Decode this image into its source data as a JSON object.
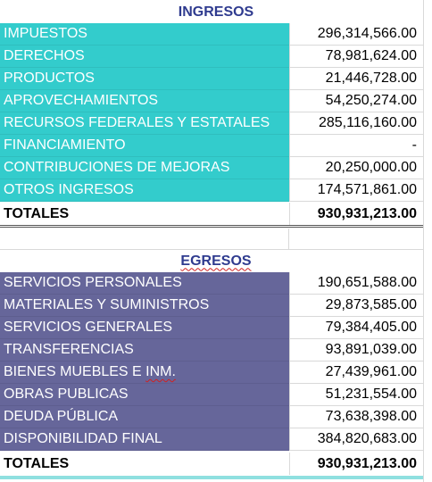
{
  "ingresos": {
    "title": "INGRESOS",
    "rows": [
      {
        "label": "IMPUESTOS",
        "value": "296,314,566.00"
      },
      {
        "label": "DERECHOS",
        "value": "78,981,624.00"
      },
      {
        "label": "PRODUCTOS",
        "value": "21,446,728.00"
      },
      {
        "label": "APROVECHAMIENTOS",
        "value": "54,250,274.00"
      },
      {
        "label": "RECURSOS FEDERALES Y ESTATALES",
        "value": "285,116,160.00"
      },
      {
        "label": "FINANCIAMIENTO",
        "value": "-"
      },
      {
        "label": "CONTRIBUCIONES DE MEJORAS",
        "value": "20,250,000.00"
      },
      {
        "label": "OTROS INGRESOS",
        "value": "174,571,861.00"
      }
    ],
    "total_label": "TOTALES",
    "total_value": "930,931,213.00"
  },
  "egresos": {
    "title": "EGRESOS",
    "rows": [
      {
        "label": "SERVICIOS PERSONALES",
        "value": "190,651,588.00"
      },
      {
        "label": "MATERIALES Y SUMINISTROS",
        "value": "29,873,585.00"
      },
      {
        "label": "SERVICIOS GENERALES",
        "value": "79,384,405.00"
      },
      {
        "label": "TRANSFERENCIAS",
        "value": "93,891,039.00"
      },
      {
        "label": "BIENES MUEBLES E INM.",
        "value": "27,439,961.00"
      },
      {
        "label": "OBRAS PUBLICAS",
        "value": "51,231,554.00"
      },
      {
        "label": "DEUDA PÚBLICA",
        "value": "73,638,398.00"
      },
      {
        "label": "DISPONIBILIDAD FINAL",
        "value": "384,820,683.00"
      }
    ],
    "total_label": "TOTALES",
    "total_value": "930,931,213.00"
  },
  "colors": {
    "ingresos_fill": "#33cccc",
    "egresos_fill": "#66669a",
    "title_text": "#2f3b8f"
  }
}
